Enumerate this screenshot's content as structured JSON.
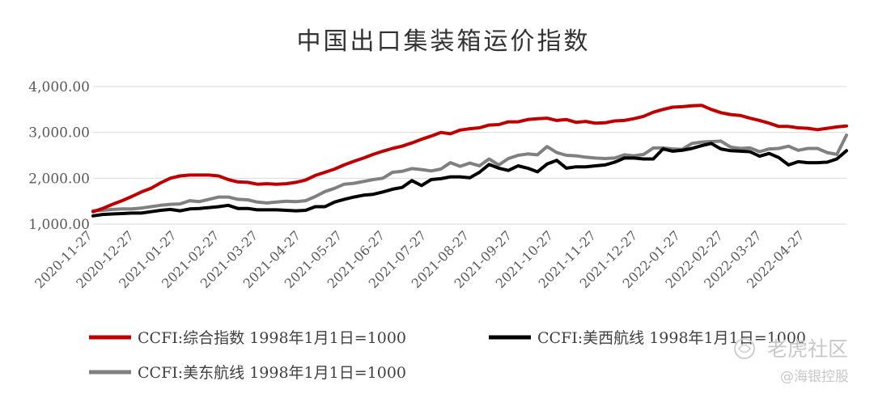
{
  "chart_data": {
    "type": "line",
    "title": "中国出口集装箱运价指数",
    "xlabel": "",
    "ylabel": "",
    "ylim": [
      1000,
      4000
    ],
    "yticks": [
      "1,000.00",
      "2,000.00",
      "3,000.00",
      "4,000.00"
    ],
    "grid": "horizontal",
    "legend": "bottom",
    "x_ticks": [
      "2020-11-27",
      "2020-12-27",
      "2021-01-27",
      "2021-02-27",
      "2021-03-27",
      "2021-04-27",
      "2021-05-27",
      "2021-06-27",
      "2021-07-27",
      "2021-08-27",
      "2021-09-27",
      "2021-10-27",
      "2021-11-27",
      "2021-12-27",
      "2022-01-27",
      "2022-02-27",
      "2022-03-27",
      "2022-04-27"
    ],
    "x_range": [
      "2020-11-27",
      "2022-05-27"
    ],
    "series": [
      {
        "name": "CCFI:综合指数 1998年1月1日=1000",
        "color": "#c00000",
        "points": [
          [
            "2020-11-27",
            1270
          ],
          [
            "2020-12-04",
            1340
          ],
          [
            "2020-12-11",
            1430
          ],
          [
            "2020-12-18",
            1510
          ],
          [
            "2020-12-25",
            1600
          ],
          [
            "2021-01-01",
            1700
          ],
          [
            "2021-01-08",
            1780
          ],
          [
            "2021-01-15",
            1900
          ],
          [
            "2021-01-22",
            2000
          ],
          [
            "2021-01-29",
            2050
          ],
          [
            "2021-02-05",
            2070
          ],
          [
            "2021-02-12",
            2070
          ],
          [
            "2021-02-19",
            2070
          ],
          [
            "2021-02-26",
            2050
          ],
          [
            "2021-03-05",
            1970
          ],
          [
            "2021-03-12",
            1920
          ],
          [
            "2021-03-19",
            1910
          ],
          [
            "2021-03-26",
            1870
          ],
          [
            "2021-04-02",
            1880
          ],
          [
            "2021-04-09",
            1870
          ],
          [
            "2021-04-16",
            1880
          ],
          [
            "2021-04-23",
            1910
          ],
          [
            "2021-04-30",
            1960
          ],
          [
            "2021-05-07",
            2060
          ],
          [
            "2021-05-14",
            2130
          ],
          [
            "2021-05-21",
            2200
          ],
          [
            "2021-05-28",
            2290
          ],
          [
            "2021-06-04",
            2370
          ],
          [
            "2021-06-11",
            2440
          ],
          [
            "2021-06-18",
            2520
          ],
          [
            "2021-06-25",
            2590
          ],
          [
            "2021-07-02",
            2650
          ],
          [
            "2021-07-09",
            2700
          ],
          [
            "2021-07-16",
            2770
          ],
          [
            "2021-07-23",
            2850
          ],
          [
            "2021-07-30",
            2920
          ],
          [
            "2021-08-06",
            3000
          ],
          [
            "2021-08-13",
            2970
          ],
          [
            "2021-08-20",
            3050
          ],
          [
            "2021-08-27",
            3080
          ],
          [
            "2021-09-03",
            3100
          ],
          [
            "2021-09-10",
            3160
          ],
          [
            "2021-09-17",
            3170
          ],
          [
            "2021-09-24",
            3230
          ],
          [
            "2021-10-01",
            3230
          ],
          [
            "2021-10-08",
            3280
          ],
          [
            "2021-10-15",
            3300
          ],
          [
            "2021-10-22",
            3310
          ],
          [
            "2021-10-29",
            3260
          ],
          [
            "2021-11-05",
            3280
          ],
          [
            "2021-11-12",
            3220
          ],
          [
            "2021-11-19",
            3240
          ],
          [
            "2021-11-26",
            3200
          ],
          [
            "2021-12-03",
            3210
          ],
          [
            "2021-12-10",
            3250
          ],
          [
            "2021-12-17",
            3260
          ],
          [
            "2021-12-24",
            3300
          ],
          [
            "2021-12-31",
            3350
          ],
          [
            "2022-01-07",
            3440
          ],
          [
            "2022-01-14",
            3500
          ],
          [
            "2022-01-21",
            3550
          ],
          [
            "2022-01-28",
            3560
          ],
          [
            "2022-02-04",
            3580
          ],
          [
            "2022-02-11",
            3590
          ],
          [
            "2022-02-18",
            3500
          ],
          [
            "2022-02-25",
            3430
          ],
          [
            "2022-03-04",
            3390
          ],
          [
            "2022-03-11",
            3370
          ],
          [
            "2022-03-18",
            3310
          ],
          [
            "2022-03-25",
            3260
          ],
          [
            "2022-04-01",
            3200
          ],
          [
            "2022-04-08",
            3130
          ],
          [
            "2022-04-15",
            3130
          ],
          [
            "2022-04-22",
            3100
          ],
          [
            "2022-04-29",
            3090
          ],
          [
            "2022-05-06",
            3060
          ],
          [
            "2022-05-13",
            3090
          ],
          [
            "2022-05-20",
            3120
          ],
          [
            "2022-05-27",
            3140
          ]
        ]
      },
      {
        "name": "CCFI:美西航线 1998年1月1日=1000",
        "color": "#000000",
        "points": [
          [
            "2020-11-27",
            1180
          ],
          [
            "2020-12-04",
            1210
          ],
          [
            "2020-12-11",
            1220
          ],
          [
            "2020-12-18",
            1230
          ],
          [
            "2020-12-25",
            1240
          ],
          [
            "2021-01-01",
            1240
          ],
          [
            "2021-01-08",
            1270
          ],
          [
            "2021-01-15",
            1300
          ],
          [
            "2021-01-22",
            1320
          ],
          [
            "2021-01-29",
            1290
          ],
          [
            "2021-02-05",
            1330
          ],
          [
            "2021-02-12",
            1340
          ],
          [
            "2021-02-19",
            1360
          ],
          [
            "2021-02-26",
            1380
          ],
          [
            "2021-03-05",
            1410
          ],
          [
            "2021-03-12",
            1340
          ],
          [
            "2021-03-19",
            1340
          ],
          [
            "2021-03-26",
            1310
          ],
          [
            "2021-04-02",
            1310
          ],
          [
            "2021-04-09",
            1310
          ],
          [
            "2021-04-16",
            1300
          ],
          [
            "2021-04-23",
            1290
          ],
          [
            "2021-04-30",
            1300
          ],
          [
            "2021-05-07",
            1380
          ],
          [
            "2021-05-14",
            1380
          ],
          [
            "2021-05-21",
            1480
          ],
          [
            "2021-05-28",
            1540
          ],
          [
            "2021-06-04",
            1590
          ],
          [
            "2021-06-11",
            1630
          ],
          [
            "2021-06-18",
            1650
          ],
          [
            "2021-06-25",
            1700
          ],
          [
            "2021-07-02",
            1760
          ],
          [
            "2021-07-09",
            1800
          ],
          [
            "2021-07-16",
            1950
          ],
          [
            "2021-07-23",
            1840
          ],
          [
            "2021-07-30",
            1970
          ],
          [
            "2021-08-06",
            1990
          ],
          [
            "2021-08-13",
            2030
          ],
          [
            "2021-08-20",
            2030
          ],
          [
            "2021-08-27",
            2010
          ],
          [
            "2021-09-03",
            2130
          ],
          [
            "2021-09-10",
            2300
          ],
          [
            "2021-09-17",
            2220
          ],
          [
            "2021-09-24",
            2170
          ],
          [
            "2021-10-01",
            2270
          ],
          [
            "2021-10-08",
            2220
          ],
          [
            "2021-10-15",
            2140
          ],
          [
            "2021-10-22",
            2310
          ],
          [
            "2021-10-29",
            2390
          ],
          [
            "2021-11-05",
            2220
          ],
          [
            "2021-11-12",
            2250
          ],
          [
            "2021-11-19",
            2250
          ],
          [
            "2021-11-26",
            2270
          ],
          [
            "2021-12-03",
            2290
          ],
          [
            "2021-12-10",
            2350
          ],
          [
            "2021-12-17",
            2440
          ],
          [
            "2021-12-24",
            2440
          ],
          [
            "2021-12-31",
            2420
          ],
          [
            "2022-01-07",
            2420
          ],
          [
            "2022-01-14",
            2640
          ],
          [
            "2022-01-21",
            2590
          ],
          [
            "2022-01-28",
            2610
          ],
          [
            "2022-02-04",
            2650
          ],
          [
            "2022-02-11",
            2710
          ],
          [
            "2022-02-18",
            2760
          ],
          [
            "2022-02-25",
            2640
          ],
          [
            "2022-03-04",
            2600
          ],
          [
            "2022-03-11",
            2590
          ],
          [
            "2022-03-18",
            2580
          ],
          [
            "2022-03-25",
            2480
          ],
          [
            "2022-04-01",
            2540
          ],
          [
            "2022-04-08",
            2450
          ],
          [
            "2022-04-15",
            2290
          ],
          [
            "2022-04-22",
            2360
          ],
          [
            "2022-04-29",
            2340
          ],
          [
            "2022-05-06",
            2340
          ],
          [
            "2022-05-13",
            2350
          ],
          [
            "2022-05-20",
            2420
          ],
          [
            "2022-05-27",
            2600
          ]
        ]
      },
      {
        "name": "CCFI:美东航线 1998年1月1日=1000",
        "color": "#808080",
        "points": [
          [
            "2020-11-27",
            1290
          ],
          [
            "2020-12-04",
            1300
          ],
          [
            "2020-12-11",
            1320
          ],
          [
            "2020-12-18",
            1330
          ],
          [
            "2020-12-25",
            1330
          ],
          [
            "2021-01-01",
            1350
          ],
          [
            "2021-01-08",
            1380
          ],
          [
            "2021-01-15",
            1410
          ],
          [
            "2021-01-22",
            1430
          ],
          [
            "2021-01-29",
            1440
          ],
          [
            "2021-02-05",
            1510
          ],
          [
            "2021-02-12",
            1490
          ],
          [
            "2021-02-19",
            1540
          ],
          [
            "2021-02-26",
            1590
          ],
          [
            "2021-03-05",
            1590
          ],
          [
            "2021-03-12",
            1540
          ],
          [
            "2021-03-19",
            1530
          ],
          [
            "2021-03-26",
            1480
          ],
          [
            "2021-04-02",
            1460
          ],
          [
            "2021-04-09",
            1480
          ],
          [
            "2021-04-16",
            1500
          ],
          [
            "2021-04-23",
            1490
          ],
          [
            "2021-04-30",
            1510
          ],
          [
            "2021-05-07",
            1600
          ],
          [
            "2021-05-14",
            1710
          ],
          [
            "2021-05-21",
            1780
          ],
          [
            "2021-05-28",
            1870
          ],
          [
            "2021-06-04",
            1890
          ],
          [
            "2021-06-11",
            1930
          ],
          [
            "2021-06-18",
            1970
          ],
          [
            "2021-06-25",
            2000
          ],
          [
            "2021-07-02",
            2130
          ],
          [
            "2021-07-09",
            2150
          ],
          [
            "2021-07-16",
            2210
          ],
          [
            "2021-07-23",
            2190
          ],
          [
            "2021-07-30",
            2160
          ],
          [
            "2021-08-06",
            2200
          ],
          [
            "2021-08-13",
            2340
          ],
          [
            "2021-08-20",
            2260
          ],
          [
            "2021-08-27",
            2330
          ],
          [
            "2021-09-03",
            2270
          ],
          [
            "2021-09-10",
            2420
          ],
          [
            "2021-09-17",
            2290
          ],
          [
            "2021-09-24",
            2430
          ],
          [
            "2021-10-01",
            2500
          ],
          [
            "2021-10-08",
            2530
          ],
          [
            "2021-10-15",
            2510
          ],
          [
            "2021-10-22",
            2690
          ],
          [
            "2021-10-29",
            2560
          ],
          [
            "2021-11-05",
            2500
          ],
          [
            "2021-11-12",
            2490
          ],
          [
            "2021-11-19",
            2460
          ],
          [
            "2021-11-26",
            2440
          ],
          [
            "2021-12-03",
            2430
          ],
          [
            "2021-12-10",
            2440
          ],
          [
            "2021-12-17",
            2510
          ],
          [
            "2021-12-24",
            2490
          ],
          [
            "2021-12-31",
            2520
          ],
          [
            "2022-01-07",
            2660
          ],
          [
            "2022-01-14",
            2660
          ],
          [
            "2022-01-21",
            2640
          ],
          [
            "2022-01-28",
            2630
          ],
          [
            "2022-02-04",
            2760
          ],
          [
            "2022-02-11",
            2790
          ],
          [
            "2022-02-18",
            2800
          ],
          [
            "2022-02-25",
            2810
          ],
          [
            "2022-03-04",
            2680
          ],
          [
            "2022-03-11",
            2650
          ],
          [
            "2022-03-18",
            2660
          ],
          [
            "2022-03-25",
            2580
          ],
          [
            "2022-04-01",
            2640
          ],
          [
            "2022-04-08",
            2650
          ],
          [
            "2022-04-15",
            2700
          ],
          [
            "2022-04-22",
            2610
          ],
          [
            "2022-04-29",
            2650
          ],
          [
            "2022-05-06",
            2650
          ],
          [
            "2022-05-13",
            2560
          ],
          [
            "2022-05-20",
            2520
          ],
          [
            "2022-05-27",
            2940
          ]
        ]
      }
    ]
  },
  "watermarks": {
    "top": "老虎社区",
    "bottom": "@海银控股"
  },
  "colors": {
    "grid": "#d9d9d9",
    "axis_text": "#595959",
    "title": "#333333"
  }
}
